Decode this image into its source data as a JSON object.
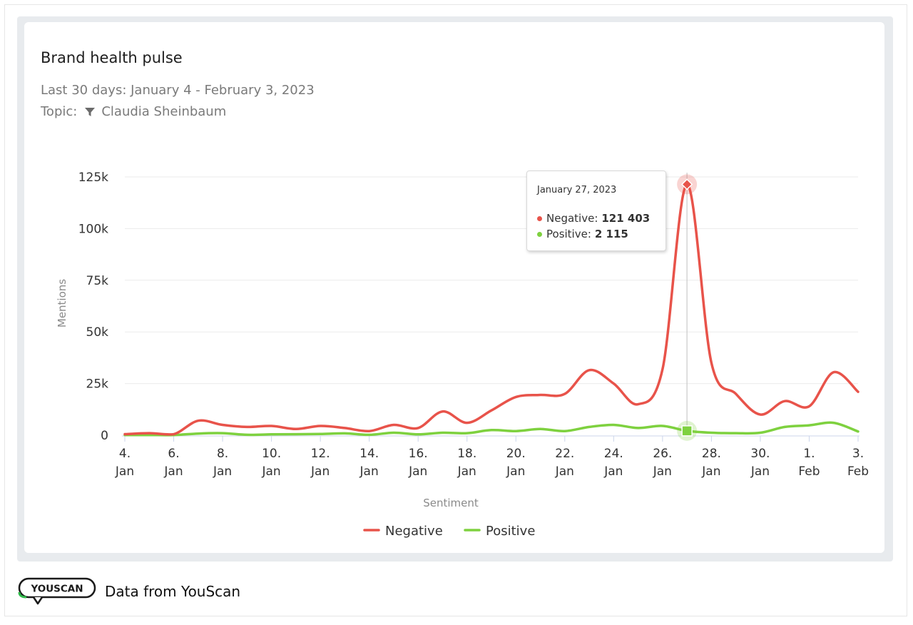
{
  "card": {
    "title": "Brand health pulse",
    "subtitle": "Last 30 days: January 4 - February 3, 2023",
    "topic_label": "Topic:",
    "topic_value": "Claudia Sheinbaum"
  },
  "tooltip": {
    "date": "January 27, 2023",
    "negative_label": "Negative:",
    "negative_value": "121 403",
    "positive_label": "Positive:",
    "positive_value": "2 115"
  },
  "footer": {
    "logo_text": "YOUSCAN",
    "text": "Data from YouScan"
  },
  "colors": {
    "negative": "#e8534a",
    "positive": "#7ed13f",
    "grid": "#ebebeb",
    "brand": "#2fb84a"
  },
  "chart_data": {
    "type": "line",
    "x": [
      "2023-01-04",
      "2023-01-05",
      "2023-01-06",
      "2023-01-07",
      "2023-01-08",
      "2023-01-09",
      "2023-01-10",
      "2023-01-11",
      "2023-01-12",
      "2023-01-13",
      "2023-01-14",
      "2023-01-15",
      "2023-01-16",
      "2023-01-17",
      "2023-01-18",
      "2023-01-19",
      "2023-01-20",
      "2023-01-21",
      "2023-01-22",
      "2023-01-23",
      "2023-01-24",
      "2023-01-25",
      "2023-01-26",
      "2023-01-27",
      "2023-01-28",
      "2023-01-29",
      "2023-01-30",
      "2023-01-31",
      "2023-02-01",
      "2023-02-02",
      "2023-02-03"
    ],
    "series": [
      {
        "name": "Negative",
        "color": "#e8534a",
        "values": [
          500,
          1000,
          500,
          7000,
          5000,
          4000,
          4500,
          3000,
          4500,
          3500,
          2000,
          5000,
          3500,
          11500,
          6000,
          12000,
          18500,
          19500,
          20000,
          31500,
          25000,
          15000,
          32000,
          121403,
          35000,
          20000,
          10000,
          16500,
          14000,
          30500,
          21000
        ]
      },
      {
        "name": "Positive",
        "color": "#7ed13f",
        "values": [
          100,
          100,
          100,
          800,
          1000,
          200,
          400,
          500,
          600,
          900,
          200,
          1200,
          400,
          1200,
          1000,
          2500,
          2000,
          3000,
          2000,
          4000,
          5000,
          3500,
          4500,
          2115,
          1200,
          1000,
          1200,
          4000,
          4800,
          6000,
          1800
        ]
      }
    ],
    "x_tick_labels": [
      [
        "4.",
        "Jan"
      ],
      [
        "6.",
        "Jan"
      ],
      [
        "8.",
        "Jan"
      ],
      [
        "10.",
        "Jan"
      ],
      [
        "12.",
        "Jan"
      ],
      [
        "14.",
        "Jan"
      ],
      [
        "16.",
        "Jan"
      ],
      [
        "18.",
        "Jan"
      ],
      [
        "20.",
        "Jan"
      ],
      [
        "22.",
        "Jan"
      ],
      [
        "24.",
        "Jan"
      ],
      [
        "26.",
        "Jan"
      ],
      [
        "28.",
        "Jan"
      ],
      [
        "30.",
        "Jan"
      ],
      [
        "1.",
        "Feb"
      ],
      [
        "3.",
        "Feb"
      ]
    ],
    "y_ticks": [
      0,
      25000,
      50000,
      75000,
      100000,
      125000
    ],
    "y_tick_labels": [
      "0",
      "25k",
      "50k",
      "75k",
      "100k",
      "125k"
    ],
    "ylim": [
      0,
      125000
    ],
    "xlabel": "Sentiment",
    "ylabel": "Mentions",
    "highlight_date": "2023-01-27",
    "grid": true,
    "legend_position": "bottom-center"
  }
}
